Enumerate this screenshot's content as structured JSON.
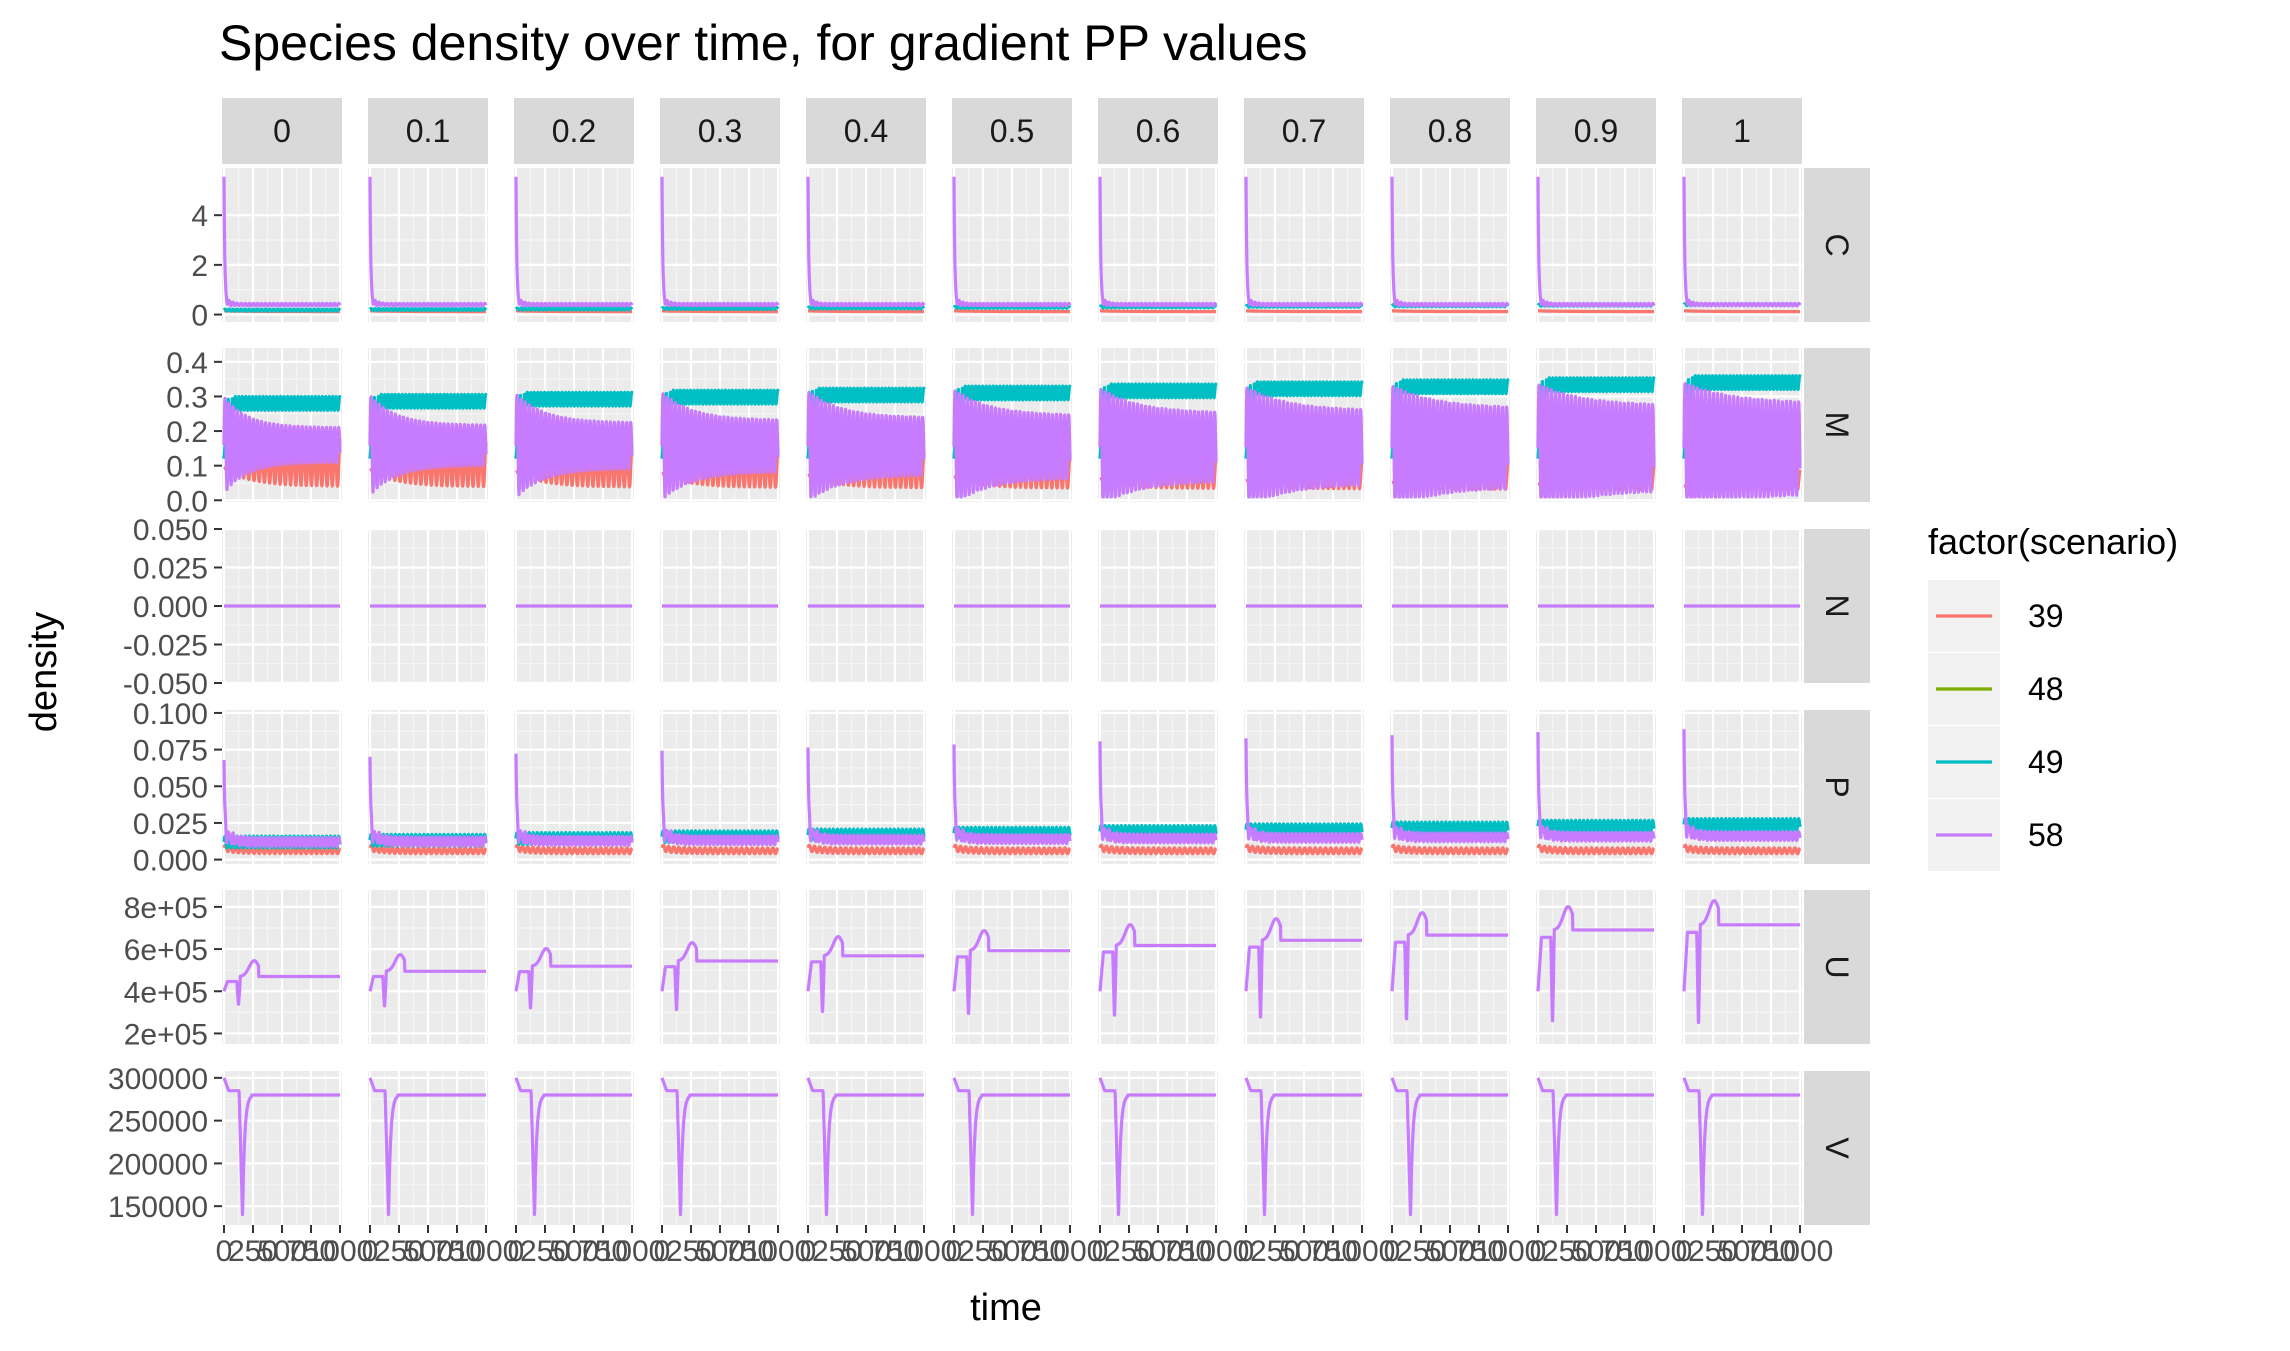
{
  "chart_data": {
    "type": "line",
    "title": "Species density over time, for gradient PP values",
    "xlabel": "time",
    "ylabel": "density",
    "facet_columns": [
      "0",
      "0.1",
      "0.2",
      "0.3",
      "0.4",
      "0.5",
      "0.6",
      "0.7",
      "0.8",
      "0.9",
      "1"
    ],
    "facet_rows": [
      "C",
      "M",
      "N",
      "P",
      "U",
      "V"
    ],
    "x_tick_labels": [
      "0",
      "250",
      "500",
      "750",
      "1000"
    ],
    "xlim": [
      0,
      1000
    ],
    "legend": {
      "title": "factor(scenario)",
      "position": "right",
      "entries": [
        {
          "label": "39",
          "color": "#F8766D"
        },
        {
          "label": "48",
          "color": "#7CAE00"
        },
        {
          "label": "49",
          "color": "#00BFC4"
        },
        {
          "label": "58",
          "color": "#C77CFF"
        }
      ]
    },
    "rows": [
      {
        "name": "C",
        "ylim": [
          -0.3,
          5.9
        ],
        "ticks": [
          0,
          2,
          4
        ],
        "tick_labels": [
          "0",
          "2",
          "4"
        ],
        "series_summary": {
          "58": {
            "peak": 5.5,
            "steady": 0.35
          },
          "39": {
            "steady": 0.12
          },
          "49": {
            "steady": 0.3
          }
        }
      },
      {
        "name": "M",
        "ylim": [
          -0.005,
          0.44
        ],
        "ticks": [
          0,
          0.1,
          0.2,
          0.3,
          0.4
        ],
        "tick_labels": [
          "0.0",
          "0.1",
          "0.2",
          "0.3",
          "0.4"
        ],
        "series_summary": {
          "39": {
            "min": 0.02,
            "max": 0.16
          },
          "49": {
            "peak": 0.3,
            "max": 0.3
          },
          "58": {
            "min": 0.05,
            "max": 0.31
          }
        }
      },
      {
        "name": "N",
        "ylim": [
          -0.05,
          0.05
        ],
        "ticks": [
          -0.05,
          -0.025,
          0,
          0.025,
          0.05
        ],
        "tick_labels": [
          "-0.050",
          "-0.025",
          "0.000",
          "0.025",
          "0.050"
        ],
        "series_summary": {
          "58": {
            "value": 0
          }
        }
      },
      {
        "name": "P",
        "ylim": [
          -0.003,
          0.102
        ],
        "ticks": [
          0,
          0.025,
          0.05,
          0.075,
          0.1
        ],
        "tick_labels": [
          "0.000",
          "0.025",
          "0.050",
          "0.075",
          "0.100"
        ],
        "series_summary": {
          "58": {
            "peak_first": 0.068,
            "peak_last": 0.085,
            "steady": 0.012
          },
          "39": {
            "steady": 0.006
          },
          "49": {
            "steady": 0.02
          }
        }
      },
      {
        "name": "U",
        "ylim": [
          150000,
          880000
        ],
        "ticks": [
          200000,
          400000,
          600000,
          800000
        ],
        "tick_labels": [
          "2e+05",
          "4e+05",
          "6e+05",
          "8e+05"
        ],
        "series_summary": {
          "58": {
            "steady_first": 470000,
            "steady_last": 715000,
            "min_first": 330000,
            "min_last": 215000
          }
        }
      },
      {
        "name": "V",
        "ylim": [
          128000,
          308000
        ],
        "ticks": [
          150000,
          200000,
          250000,
          300000
        ],
        "tick_labels": [
          "150000",
          "200000",
          "250000",
          "300000"
        ],
        "series_summary": {
          "58": {
            "start": 300000,
            "steady": 280000,
            "min": 138000
          }
        }
      }
    ]
  }
}
